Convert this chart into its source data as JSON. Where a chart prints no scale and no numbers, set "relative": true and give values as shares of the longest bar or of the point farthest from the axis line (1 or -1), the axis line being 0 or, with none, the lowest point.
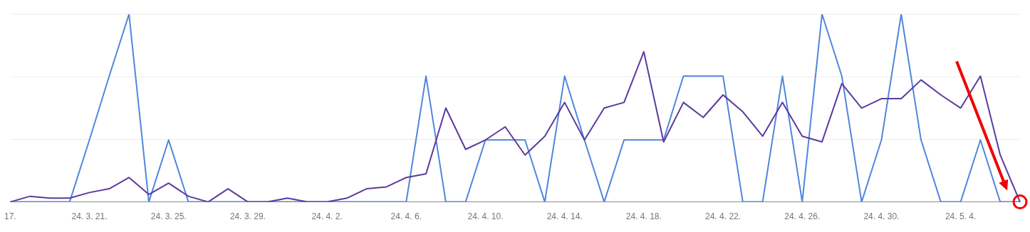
{
  "chart_data": {
    "type": "line",
    "relative": true,
    "legend": false,
    "ref_lines": [
      {
        "axis": "y",
        "value": 0.333,
        "color": "#ececec"
      },
      {
        "axis": "y",
        "value": 0.667,
        "color": "#ececec"
      },
      {
        "axis": "y",
        "value": 1,
        "color": "#ececec"
      }
    ],
    "marker": "none",
    "categories": [
      "17.",
      null,
      null,
      null,
      "24. 3. 21.",
      null,
      null,
      null,
      "24. 3. 25.",
      null,
      null,
      null,
      "24. 3. 29.",
      null,
      null,
      null,
      "24. 4. 2.",
      null,
      null,
      null,
      "24. 4. 6.",
      null,
      null,
      null,
      "24. 4. 10.",
      null,
      null,
      null,
      "24. 4. 14.",
      null,
      null,
      null,
      "24. 4. 18.",
      null,
      null,
      null,
      "24. 4. 22.",
      null,
      null,
      null,
      "24. 4. 26.",
      null,
      null,
      null,
      "24. 4. 30.",
      null,
      null,
      null,
      "24. 5. 4.",
      null,
      null,
      null
    ],
    "series": [
      {
        "color": "#5b3a9e",
        "values": [
          0,
          0.03,
          0.02,
          0.02,
          0.05,
          0.07,
          0.13,
          0.04,
          0.1,
          0.03,
          0,
          0.07,
          0,
          0,
          0.02,
          0,
          0,
          0.02,
          0.07,
          0.08,
          0.13,
          0.15,
          0.5,
          0.28,
          0.33,
          0.4,
          0.25,
          0.35,
          0.53,
          0.33,
          0.5,
          0.53,
          0.8,
          0.32,
          0.53,
          0.45,
          0.57,
          0.48,
          0.35,
          0.53,
          0.35,
          0.32,
          0.63,
          0.5,
          0.55,
          0.55,
          0.65,
          0.57,
          0.5,
          0.67,
          0.25,
          0
        ]
      },
      {
        "color": "#4f86de",
        "values": [
          0,
          0,
          0,
          0,
          0.33,
          0.67,
          1,
          0,
          0.33,
          0,
          0,
          0,
          0,
          0,
          0,
          0,
          0,
          0,
          0,
          0,
          0,
          0.67,
          0,
          0,
          0.33,
          0.33,
          0.33,
          0,
          0.67,
          0.33,
          0,
          0.33,
          0.33,
          0.33,
          0.67,
          0.67,
          0.67,
          0,
          0,
          0.67,
          0,
          1,
          0.67,
          0,
          0.33,
          1,
          0.33,
          0,
          0,
          0.33,
          0,
          0
        ]
      }
    ]
  }
}
